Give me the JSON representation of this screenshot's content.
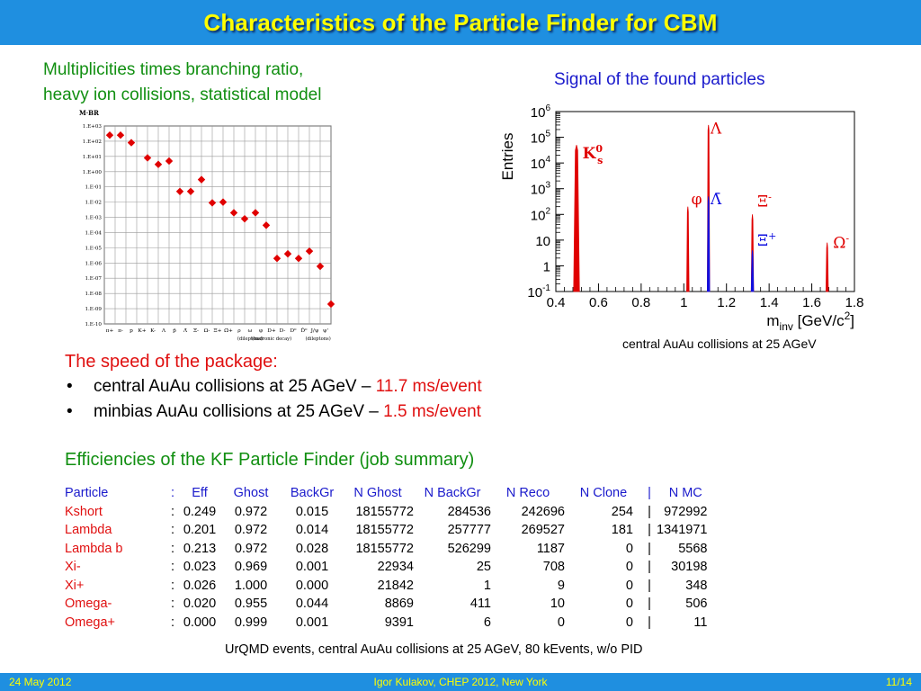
{
  "slide": {
    "title": "Characteristics of the Particle Finder for CBM"
  },
  "multiplicity": {
    "caption_line1": "Multiplicities times branching ratio,",
    "caption_line2": "heavy ion collisions, statistical model"
  },
  "signal": {
    "caption": "Signal of the found particles",
    "note": "central AuAu collisions at 25 AGeV"
  },
  "speed": {
    "heading": "The speed of the package:",
    "items": [
      {
        "bullet": "•",
        "text": "central AuAu collisions at 25 AGeV – ",
        "value": "11.7 ms/event"
      },
      {
        "bullet": "•",
        "text": "minbias AuAu collisions at 25 AGeV – ",
        "value": "1.5 ms/event"
      }
    ]
  },
  "efficiency": {
    "title": "Efficiencies of the KF Particle Finder (job summary)",
    "header": [
      "Particle",
      ":",
      "Eff",
      "Ghost",
      "BackGr",
      "N Ghost",
      "N BackGr",
      "N Reco",
      "N Clone",
      "|",
      "N MC"
    ],
    "rows": [
      [
        "Kshort",
        ":",
        "0.249",
        "0.972",
        "0.015",
        "18155772",
        "284536",
        "242696",
        "254",
        "|",
        "972992"
      ],
      [
        "Lambda",
        ":",
        "0.201",
        "0.972",
        "0.014",
        "18155772",
        "257777",
        "269527",
        "181",
        "|",
        "1341971"
      ],
      [
        "Lambda b",
        ":",
        "0.213",
        "0.972",
        "0.028",
        "18155772",
        "526299",
        "1187",
        "0",
        "|",
        "5568"
      ],
      [
        "Xi-",
        ":",
        "0.023",
        "0.969",
        "0.001",
        "22934",
        "25",
        "708",
        "0",
        "|",
        "30198"
      ],
      [
        "Xi+",
        ":",
        "0.026",
        "1.000",
        "0.000",
        "21842",
        "1",
        "9",
        "0",
        "|",
        "348"
      ],
      [
        "Omega-",
        ":",
        "0.020",
        "0.955",
        "0.044",
        "8869",
        "411",
        "10",
        "0",
        "|",
        "506"
      ],
      [
        "Omega+",
        ":",
        "0.000",
        "0.999",
        "0.001",
        "9391",
        "6",
        "0",
        "0",
        "|",
        "11"
      ]
    ],
    "note": "UrQMD events, central AuAu collisions at 25 AGeV, 80 kEvents, w/o PID"
  },
  "footer": {
    "date": "24 May 2012",
    "author": "Igor Kulakov, CHEP 2012, New York",
    "page": "11/14"
  },
  "colors": {
    "title_bar": "#1f8fe0",
    "title_text": "#ffff00",
    "green": "#118f11",
    "red": "#e01010",
    "blue": "#1a1acc"
  },
  "chart_data": [
    {
      "type": "scatter",
      "title": "",
      "ylabel": "M·BR",
      "yscale": "log",
      "ylim": [
        1e-10,
        1000
      ],
      "y_ticks": [
        "1.E+03",
        "1.E+02",
        "1.E+01",
        "1.E+00",
        "1.E-01",
        "1.E-02",
        "1.E-03",
        "1.E-04",
        "1.E-05",
        "1.E-06",
        "1.E-07",
        "1.E-08",
        "1.E-09",
        "1.E-10"
      ],
      "grid": true,
      "categories": [
        "π+",
        "π-",
        "p",
        "K+",
        "K-",
        "Λ",
        "p̄",
        "Λ̄",
        "Ξ-",
        "Ω-",
        "Ξ̄+",
        "Ω̄+",
        "ρ",
        "ω",
        "φ",
        "D+",
        "D-",
        "D0",
        "D̄0",
        "J/ψ",
        "ψ'"
      ],
      "x_tick_labels": [
        "π+",
        "π-",
        "p",
        "K+",
        "K-",
        "Λ",
        "p̄",
        "Λ̄",
        "Ξ-",
        "Ω-",
        "Ξ̄+",
        "Ω̄+",
        "ρ",
        "ω",
        "φ",
        "D+",
        "D-",
        "D⁰",
        "D̄⁰",
        "J/ψ",
        "ψ'"
      ],
      "annotations": [
        "(dileptons)",
        "(hadronic decay)",
        "(dileptons)"
      ],
      "points": [
        {
          "x": 0.5,
          "y": 250
        },
        {
          "x": 1.5,
          "y": 250
        },
        {
          "x": 2.5,
          "y": 80
        },
        {
          "x": 4.0,
          "y": 8
        },
        {
          "x": 5.0,
          "y": 3
        },
        {
          "x": 6.0,
          "y": 5
        },
        {
          "x": 7.0,
          "y": 0.05
        },
        {
          "x": 8.0,
          "y": 0.05
        },
        {
          "x": 9.0,
          "y": 0.3
        },
        {
          "x": 10.0,
          "y": 0.009
        },
        {
          "x": 11.0,
          "y": 0.01
        },
        {
          "x": 12.0,
          "y": 0.002
        },
        {
          "x": 13.0,
          "y": 0.0008
        },
        {
          "x": 14.0,
          "y": 0.002
        },
        {
          "x": 15.0,
          "y": 0.0003
        },
        {
          "x": 16.0,
          "y": 2e-06
        },
        {
          "x": 17.0,
          "y": 4e-06
        },
        {
          "x": 18.0,
          "y": 2e-06
        },
        {
          "x": 19.0,
          "y": 6e-06
        },
        {
          "x": 20.0,
          "y": 6e-07
        },
        {
          "x": 21.0,
          "y": 2e-09
        }
      ],
      "marker_color": "#e00000"
    },
    {
      "type": "line",
      "title": "",
      "xlabel": "m_inv [GeV/c²]",
      "xlabel_main": "m",
      "xlabel_sub": "inv",
      "xlabel_unit": " [GeV/c",
      "xlabel_sup": "2",
      "xlabel_end": "]",
      "ylabel": "Entries",
      "xlim": [
        0.4,
        1.8
      ],
      "ylim": [
        0.1,
        1000000
      ],
      "yscale": "log",
      "x_ticks": [
        {
          "value": 0.4,
          "label": "0.4"
        },
        {
          "value": 0.6,
          "label": "0.6"
        },
        {
          "value": 0.8,
          "label": "0.8"
        },
        {
          "value": 1.0,
          "label": "1"
        },
        {
          "value": 1.2,
          "label": "1.2"
        },
        {
          "value": 1.4,
          "label": "1.4"
        },
        {
          "value": 1.6,
          "label": "1.6"
        },
        {
          "value": 1.8,
          "label": "1.8"
        }
      ],
      "y_ticks": [
        {
          "value": 0.1,
          "base": "10",
          "exp": "-1"
        },
        {
          "value": 1,
          "base": "1",
          "exp": ""
        },
        {
          "value": 10,
          "base": "10",
          "exp": ""
        },
        {
          "value": 100,
          "base": "10",
          "exp": "2"
        },
        {
          "value": 1000,
          "base": "10",
          "exp": "3"
        },
        {
          "value": 10000,
          "base": "10",
          "exp": "4"
        },
        {
          "value": 100000,
          "base": "10",
          "exp": "5"
        },
        {
          "value": 1000000,
          "base": "10",
          "exp": "6"
        }
      ],
      "peaks": [
        {
          "name": "K_s^0",
          "mass": 0.497,
          "height": 50000,
          "color": "#e00000",
          "label": "K",
          "label_sub": "s",
          "label_sup": "0",
          "label_bold": true,
          "label_mass": 0.525,
          "label_y": 15000
        },
        {
          "name": "φ",
          "mass": 1.019,
          "height": 200,
          "color": "#e00000",
          "label": "φ",
          "label_sub": "",
          "label_sup": "",
          "label_bold": false,
          "label_mass": 1.035,
          "label_y": 250
        },
        {
          "name": "Λ",
          "mass": 1.1157,
          "height": 300000,
          "color": "#e00000",
          "label": "Λ",
          "label_sub": "",
          "label_sup": "",
          "label_bold": false,
          "label_mass": 1.125,
          "label_y": 140000
        },
        {
          "name": "Λ̄",
          "mass": 1.1157,
          "height": 500,
          "color": "#1010e0",
          "label": "Λ̄",
          "label_sub": "",
          "label_sup": "",
          "label_bold": false,
          "label_mass": 1.125,
          "label_y": 250
        },
        {
          "name": "Ξ-",
          "mass": 1.3217,
          "height": 100,
          "color": "#e00000",
          "label": "Ξ",
          "label_sub": "",
          "label_sup": "-",
          "label_bold": false,
          "label_mass": 1.345,
          "label_y": 200
        },
        {
          "name": "Ξ+",
          "mass": 1.3217,
          "height": 4,
          "color": "#1010e0",
          "label": "Ξ",
          "label_sub": "",
          "label_sup": "+",
          "label_bold": false,
          "label_mass": 1.345,
          "label_y": 6
        },
        {
          "name": "Ω-",
          "mass": 1.672,
          "height": 8,
          "color": "#e00000",
          "label": "Ω",
          "label_sub": "",
          "label_sup": "-",
          "label_bold": false,
          "label_mass": 1.7,
          "label_y": 5
        }
      ]
    }
  ]
}
